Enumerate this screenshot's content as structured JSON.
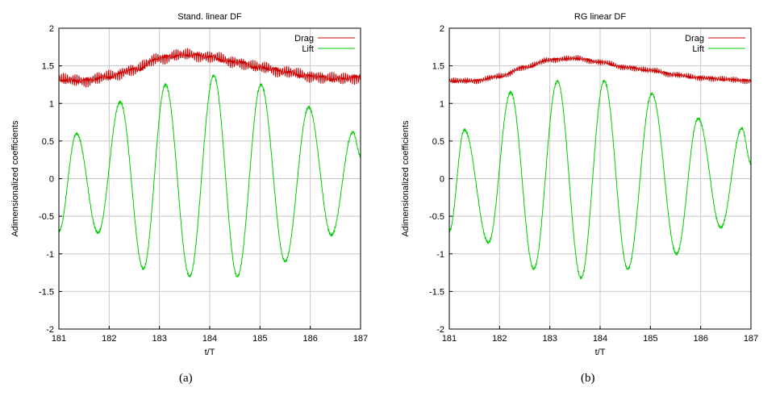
{
  "captions": [
    "(a)",
    "(b)"
  ],
  "chart_data": [
    {
      "type": "line",
      "title": "Stand. linear DF",
      "xlabel": "t/T",
      "ylabel": "Adimensionalized coefficients",
      "xlim": [
        181,
        187
      ],
      "ylim": [
        -2,
        2
      ],
      "xticks": [
        "181",
        "182",
        "183",
        "184",
        "185",
        "186",
        "187"
      ],
      "yticks": [
        "-2",
        "-1.5",
        "-1",
        "-0.5",
        "0",
        "0.5",
        "1",
        "1.5",
        "2"
      ],
      "grid": true,
      "legend_position": "top-right",
      "series": [
        {
          "name": "Drag",
          "color": "#cc0000",
          "x": [
            181.0,
            181.5,
            182.0,
            182.5,
            183.0,
            183.5,
            184.0,
            184.5,
            185.0,
            185.5,
            186.0,
            186.5,
            187.0
          ],
          "y": [
            1.32,
            1.3,
            1.36,
            1.45,
            1.6,
            1.65,
            1.62,
            1.55,
            1.48,
            1.42,
            1.36,
            1.33,
            1.34
          ]
        },
        {
          "name": "Lift",
          "color": "#00cc00",
          "x": [
            181.0,
            181.35,
            181.78,
            182.22,
            182.68,
            183.12,
            183.6,
            184.08,
            184.55,
            185.02,
            185.5,
            185.97,
            186.42,
            186.85,
            187.0
          ],
          "y": [
            -0.7,
            0.6,
            -0.72,
            1.02,
            -1.2,
            1.25,
            -1.3,
            1.37,
            -1.3,
            1.25,
            -1.1,
            0.95,
            -0.75,
            0.62,
            0.3
          ]
        }
      ]
    },
    {
      "type": "line",
      "title": "RG linear DF",
      "xlabel": "t/T",
      "ylabel": "Adimensionalized coefficients",
      "xlim": [
        181,
        187
      ],
      "ylim": [
        -2,
        2
      ],
      "xticks": [
        "181",
        "182",
        "183",
        "184",
        "185",
        "186",
        "187"
      ],
      "yticks": [
        "-2",
        "-1.5",
        "-1",
        "-0.5",
        "0",
        "0.5",
        "1",
        "1.5",
        "2"
      ],
      "grid": true,
      "legend_position": "top-right",
      "series": [
        {
          "name": "Drag",
          "color": "#cc0000",
          "x": [
            181.0,
            181.5,
            182.0,
            182.5,
            183.0,
            183.5,
            184.0,
            184.5,
            185.0,
            185.5,
            186.0,
            186.5,
            187.0
          ],
          "y": [
            1.3,
            1.3,
            1.36,
            1.48,
            1.58,
            1.6,
            1.55,
            1.48,
            1.44,
            1.38,
            1.34,
            1.32,
            1.3
          ]
        },
        {
          "name": "Lift",
          "color": "#00cc00",
          "x": [
            181.0,
            181.3,
            181.78,
            182.22,
            182.68,
            183.15,
            183.62,
            184.08,
            184.55,
            185.03,
            185.52,
            185.95,
            186.4,
            186.82,
            187.0
          ],
          "y": [
            -0.7,
            0.65,
            -0.85,
            1.15,
            -1.2,
            1.3,
            -1.32,
            1.3,
            -1.2,
            1.13,
            -1.0,
            0.8,
            -0.65,
            0.67,
            0.2
          ]
        }
      ]
    }
  ]
}
